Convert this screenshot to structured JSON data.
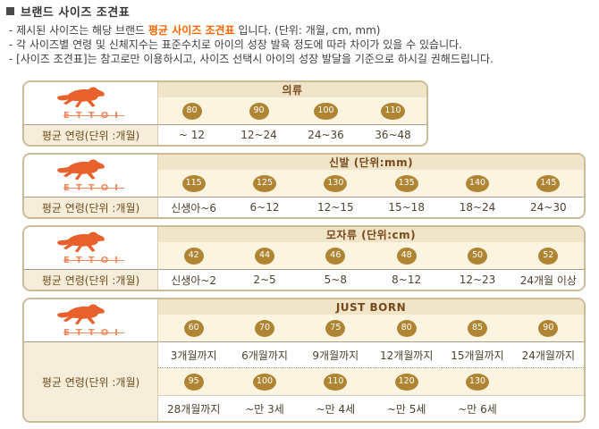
{
  "page": {
    "title": "브랜드 사이즈 조견표",
    "notes": {
      "n1_pre": "- 제시된 사이즈는 해당 브랜드 ",
      "n1_highlight": "평균 사이즈 조견표",
      "n1_post": " 입니다.  (단위: 개월, cm, mm)",
      "n2": "- 각 사이즈별 연령 및 신체지수는 표준수치로 아이의 성장 발육 정도에 따라 차이가 있을 수 있습니다.",
      "n3": "- [사이즈 조견표]는 참고로만 이용하시고, 사이즈 선택시 아이의 성장 발달을 기준으로 하시길 권해드립니다."
    }
  },
  "brand": {
    "name": "ETTOI",
    "logo_icon": "horse-icon"
  },
  "tables": [
    {
      "id": "clothing",
      "title": "의류",
      "age_label": "평균 연령(단위 :개월)",
      "bands": [
        {
          "sizes": [
            "80",
            "90",
            "100",
            "110"
          ],
          "ages": [
            "~ 12",
            "12~24",
            "24~36",
            "36~48"
          ]
        }
      ]
    },
    {
      "id": "shoes",
      "title": "신발 (단위:mm)",
      "age_label": "평균 연령(단위 :개월)",
      "bands": [
        {
          "sizes": [
            "115",
            "125",
            "130",
            "135",
            "140",
            "145"
          ],
          "ages": [
            "신생아~6",
            "6~12",
            "12~15",
            "15~18",
            "18~24",
            "24~30"
          ]
        }
      ]
    },
    {
      "id": "hats",
      "title": "모자류 (단위:cm)",
      "age_label": "평균 연령(단위 :개월)",
      "bands": [
        {
          "sizes": [
            "42",
            "44",
            "46",
            "48",
            "50",
            "52"
          ],
          "ages": [
            "신생아~2",
            "2~5",
            "5~8",
            "8~12",
            "12~23",
            "24개월 이상"
          ]
        }
      ]
    },
    {
      "id": "just-born",
      "title": "JUST BORN",
      "age_label": "평균 연령(단위 :개월)",
      "bands": [
        {
          "sizes": [
            "60",
            "70",
            "75",
            "80",
            "85",
            "90"
          ],
          "ages": [
            "3개월까지",
            "6개월까지",
            "9개월까지",
            "12개월까지",
            "15개월까지",
            "24개월까지"
          ]
        },
        {
          "sizes": [
            "95",
            "100",
            "110",
            "120",
            "130",
            ""
          ],
          "ages": [
            "28개월까지",
            "~만 3세",
            "~만 4세",
            "~만 5세",
            "~만 6세",
            ""
          ]
        }
      ]
    }
  ],
  "colors": {
    "accent_orange": "#ff6600",
    "badge": "#af8534",
    "table_border": "#ccbb97",
    "header_bg": "#f1e5c9",
    "badge_row_bg": "#fbf4e0",
    "label_bg": "#f6eedb",
    "header_text": "#76491b",
    "label_text": "#6e4e1f",
    "age_text": "#4e432f",
    "line_gray": "#a69d8c",
    "dotted_gray": "#a39b8c",
    "divider_tan": "#d8caab",
    "logo_orange": "#e8602c",
    "logo_text": "#f08a5c"
  }
}
